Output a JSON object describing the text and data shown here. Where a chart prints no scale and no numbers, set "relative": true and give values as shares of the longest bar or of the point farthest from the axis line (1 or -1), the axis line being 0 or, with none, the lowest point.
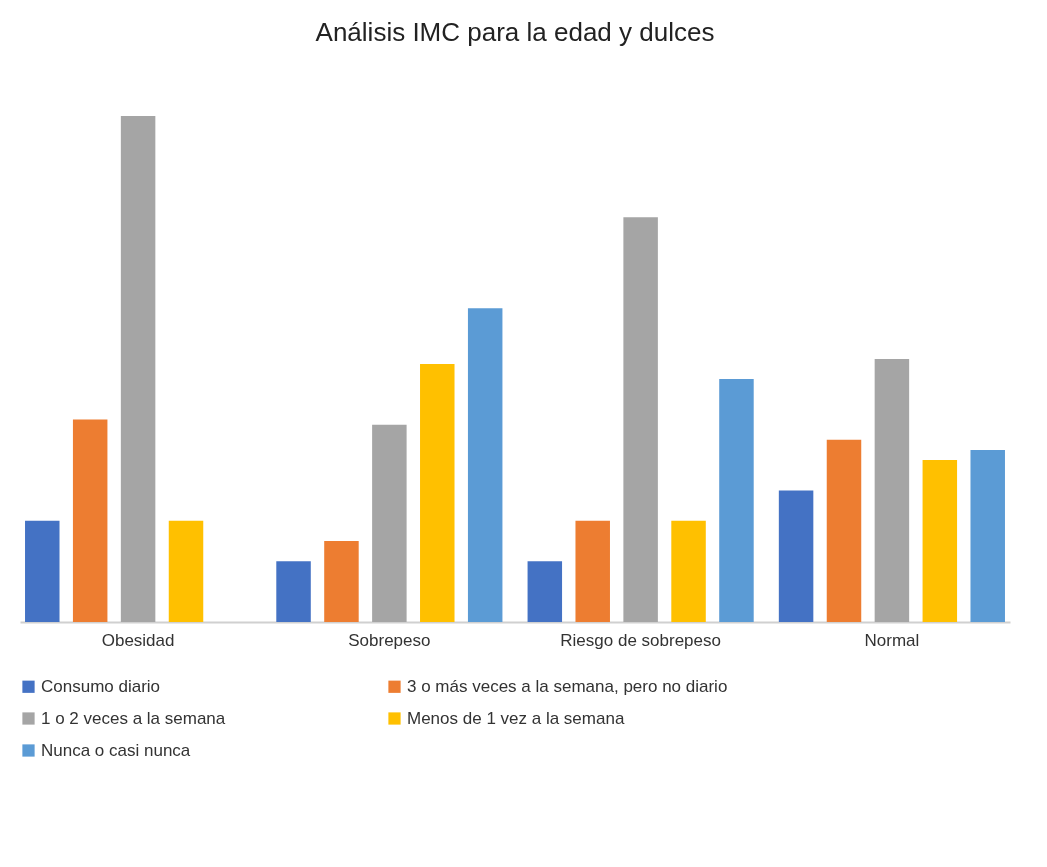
{
  "chart_data": {
    "type": "bar",
    "title": "Análisis IMC para la edad y dulces",
    "relative": true,
    "categories": [
      "Obesidad",
      "Sobrepeso",
      "Riesgo de sobrepeso",
      "Normal"
    ],
    "series": [
      {
        "name": "Consumo diario",
        "color": "#4472c4",
        "values": [
          0.2,
          0.12,
          0.12,
          0.26
        ]
      },
      {
        "name": "3 o más veces a la semana, pero no diario",
        "color": "#ed7d31",
        "values": [
          0.4,
          0.16,
          0.2,
          0.36
        ]
      },
      {
        "name": "1 o 2 veces a la semana",
        "color": "#a5a5a5",
        "values": [
          1,
          0.39,
          0.8,
          0.52
        ]
      },
      {
        "name": "Menos de 1 vez a la semana",
        "color": "#ffc000",
        "values": [
          0.2,
          0.51,
          0.2,
          0.32
        ]
      },
      {
        "name": "Nunca o casi nunca",
        "color": "#5b9bd5",
        "values": [
          null,
          0.62,
          0.48,
          0.34
        ]
      }
    ],
    "legend": "bottom"
  }
}
